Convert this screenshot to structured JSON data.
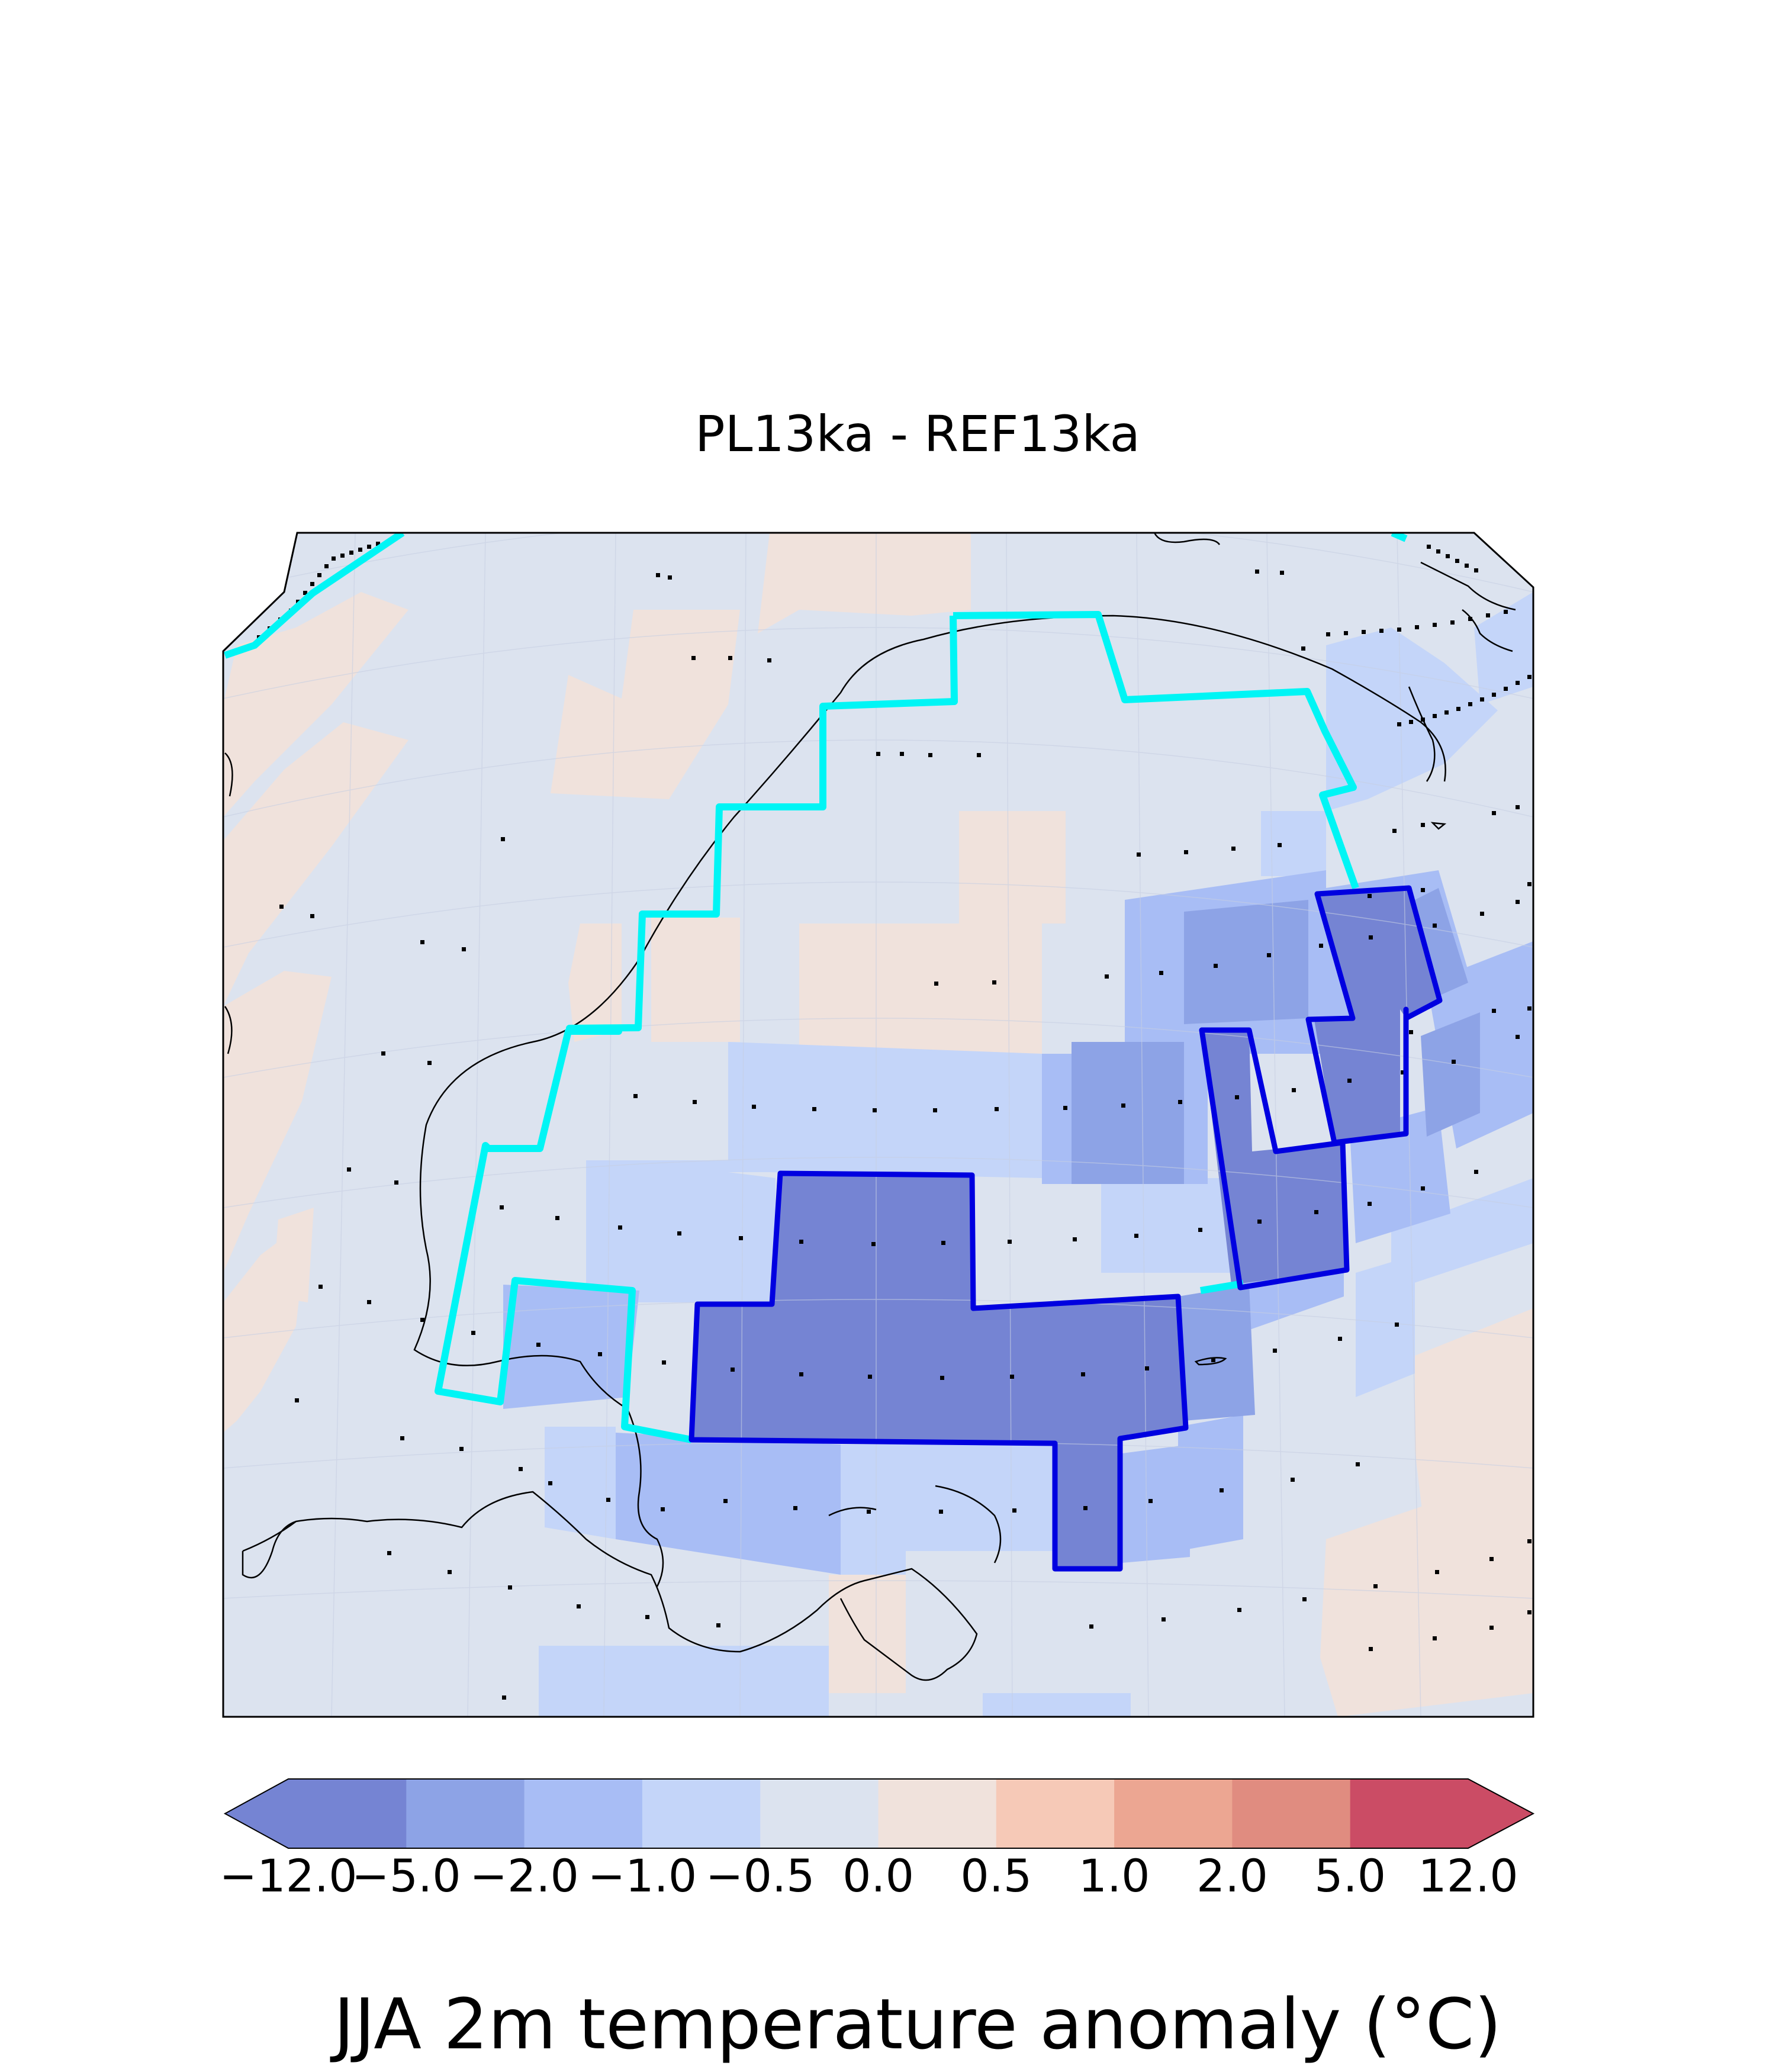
{
  "figure": {
    "title": "PL13ka - REF13ka",
    "colorbar_label": "JJA 2m temperature anomaly (°C)"
  },
  "chart_data": {
    "type": "heatmap",
    "projection": "polar stereographic map of North America (Laurentide ice-sheet region)",
    "title": "PL13ka - REF13ka",
    "colorbar_label": "JJA 2m temperature anomaly (°C)",
    "colorbar": {
      "boundaries": [
        "−12.0",
        "−5.0",
        "−2.0",
        "−1.0",
        "−0.5",
        "0.0",
        "0.5",
        "1.0",
        "2.0",
        "5.0",
        "12.0"
      ],
      "colors": [
        "#7584d3",
        "#8da3e6",
        "#a8bdf5",
        "#c4d5f9",
        "#dce3ef",
        "#f0e2dc",
        "#f6c9b7",
        "#eca692",
        "#e08c80",
        "#cb4c65"
      ],
      "extend": "both",
      "extend_colors": {
        "low": "#7584d3",
        "high": "#cb4c65"
      }
    },
    "overlays": {
      "cyan_contour": "ice-sheet extent (REF13ka)",
      "blue_contour": "ice-sheet extent (PL13ka)",
      "stipple_dots": "grid cells marked with dots",
      "coastlines": "thin black lines"
    },
    "colors": {
      "cyan_contour": "#00f5f5",
      "blue_contour": "#0000e0"
    }
  }
}
